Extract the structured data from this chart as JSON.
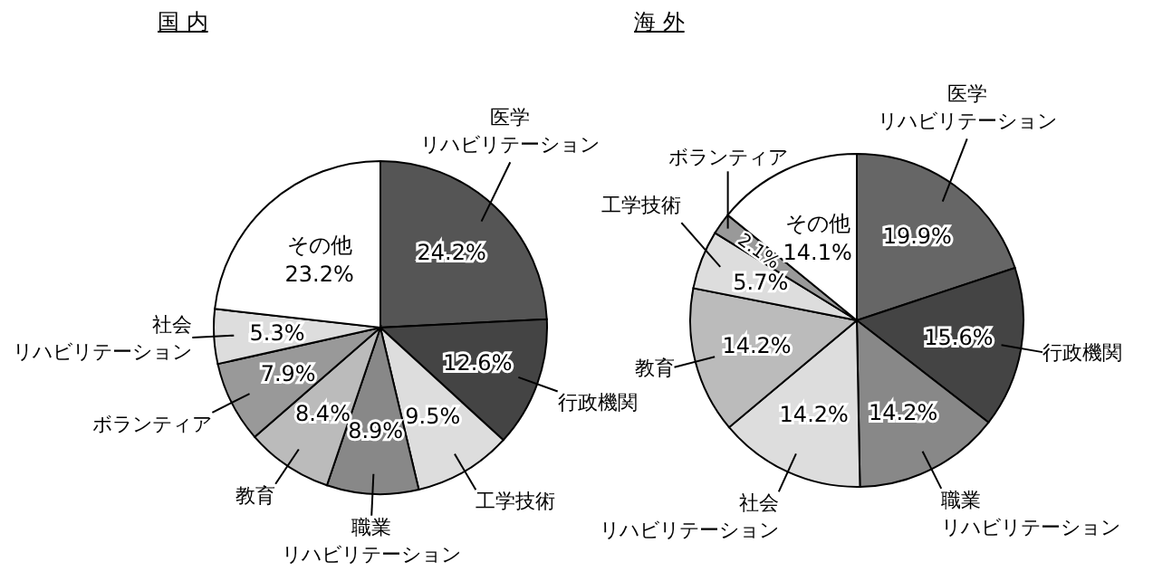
{
  "chart_data": [
    {
      "type": "pie",
      "title": "国 内",
      "categories": [
        "医学リハビリテーション",
        "行政機関",
        "工学技術",
        "職業リハビリテーション",
        "教育",
        "ボランティア",
        "社会リハビリテーション",
        "その他"
      ],
      "values": [
        24.2,
        12.6,
        9.5,
        8.9,
        8.4,
        7.9,
        5.3,
        23.2
      ],
      "value_labels": [
        "24.2%",
        "12.6%",
        "9.5%",
        "8.9%",
        "8.4%",
        "7.9%",
        "5.3%",
        "23.2%"
      ],
      "colors": [
        "#555555",
        "#444444",
        "#dddddd",
        "#888888",
        "#bbbbbb",
        "#999999",
        "#dddddd",
        "#ffffff"
      ]
    },
    {
      "type": "pie",
      "title": "海 外",
      "categories": [
        "医学リハビリテーション",
        "行政機関",
        "職業リハビリテーション",
        "社会リハビリテーション",
        "教育",
        "工学技術",
        "ボランティア",
        "その他"
      ],
      "values": [
        19.9,
        15.6,
        14.2,
        14.2,
        14.2,
        5.7,
        2.1,
        14.1
      ],
      "value_labels": [
        "19.9%",
        "15.6%",
        "14.2%",
        "14.2%",
        "14.2%",
        "5.7%",
        "2.1%",
        "14.1%"
      ],
      "colors": [
        "#666666",
        "#444444",
        "#888888",
        "#dddddd",
        "#bbbbbb",
        "#dddddd",
        "#999999",
        "#ffffff"
      ]
    }
  ]
}
